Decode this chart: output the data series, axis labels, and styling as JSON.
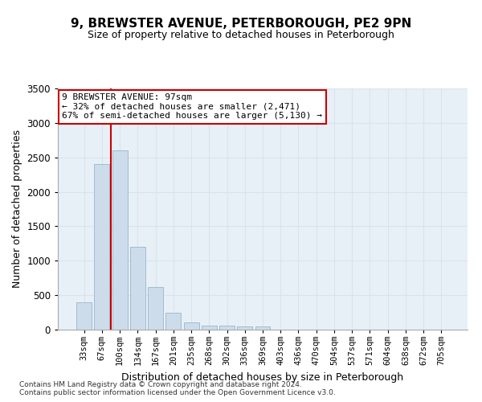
{
  "title": "9, BREWSTER AVENUE, PETERBOROUGH, PE2 9PN",
  "subtitle": "Size of property relative to detached houses in Peterborough",
  "xlabel": "Distribution of detached houses by size in Peterborough",
  "ylabel": "Number of detached properties",
  "footer_line1": "Contains HM Land Registry data © Crown copyright and database right 2024.",
  "footer_line2": "Contains public sector information licensed under the Open Government Licence v3.0.",
  "categories": [
    "33sqm",
    "67sqm",
    "100sqm",
    "134sqm",
    "167sqm",
    "201sqm",
    "235sqm",
    "268sqm",
    "302sqm",
    "336sqm",
    "369sqm",
    "403sqm",
    "436sqm",
    "470sqm",
    "504sqm",
    "537sqm",
    "571sqm",
    "604sqm",
    "638sqm",
    "672sqm",
    "705sqm"
  ],
  "values": [
    400,
    2400,
    2600,
    1200,
    620,
    240,
    100,
    60,
    60,
    50,
    50,
    0,
    0,
    0,
    0,
    0,
    0,
    0,
    0,
    0,
    0
  ],
  "bar_color": "#cddceb",
  "bar_edge_color": "#a0bcd0",
  "grid_color": "#dae3ec",
  "background_color": "#e8f0f7",
  "annotation_box_color": "#ffffff",
  "annotation_border_color": "#cc0000",
  "marker_line_color": "#cc0000",
  "marker_bin_index": 2,
  "annotation_title": "9 BREWSTER AVENUE: 97sqm",
  "annotation_line1": "← 32% of detached houses are smaller (2,471)",
  "annotation_line2": "67% of semi-detached houses are larger (5,130) →",
  "ylim": [
    0,
    3500
  ],
  "yticks": [
    0,
    500,
    1000,
    1500,
    2000,
    2500,
    3000,
    3500
  ]
}
